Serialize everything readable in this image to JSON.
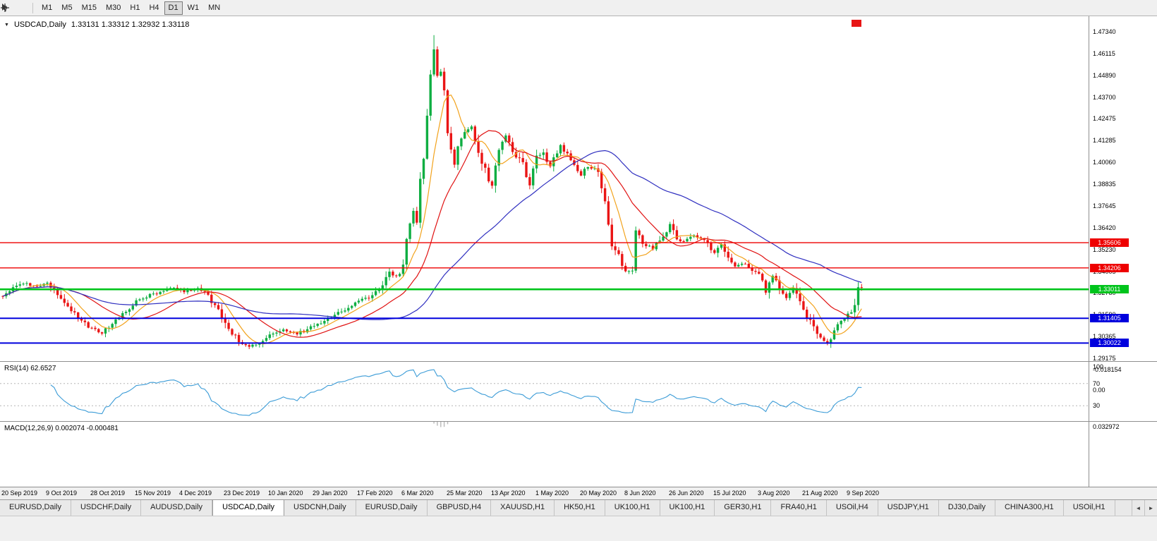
{
  "toolbar": {
    "icons": [
      "cursor-icon",
      "crosshair-icon"
    ],
    "timeframes": [
      "M1",
      "M5",
      "M15",
      "M30",
      "H1",
      "H4",
      "D1",
      "W1",
      "MN"
    ],
    "active_timeframe": "D1"
  },
  "chart": {
    "dropdown_icon": "▼",
    "symbol": "USDCAD,Daily",
    "ohlc_text": "1.33131 1.33312 1.32932 1.33118",
    "open": "1.33131",
    "high": "1.33312",
    "low": "1.32932",
    "close": "1.33118",
    "price_axis": {
      "labels": [
        "1.47340",
        "1.46115",
        "1.44890",
        "1.43700",
        "1.42475",
        "1.41285",
        "1.40060",
        "1.38835",
        "1.37645",
        "1.36420",
        "1.35230",
        "1.34005",
        "1.32780",
        "1.31590",
        "1.30365",
        "1.29175"
      ],
      "first_value": 1.4734,
      "last_value": 1.29175
    },
    "shift_marker_color": "#e81515"
  },
  "chart_data": {
    "type": "candlestick",
    "symbol": "USDCAD",
    "timeframe": "Daily",
    "ylim": [
      1.29175,
      1.4734
    ],
    "x_axis_dates": [
      "20 Sep 2019",
      "9 Oct 2019",
      "28 Oct 2019",
      "15 Nov 2019",
      "4 Dec 2019",
      "23 Dec 2019",
      "10 Jan 2020",
      "29 Jan 2020",
      "17 Feb 2020",
      "6 Mar 2020",
      "25 Mar 2020",
      "13 Apr 2020",
      "1 May 2020",
      "20 May 2020",
      "8 Jun 2020",
      "26 Jun 2020",
      "15 Jul 2020",
      "3 Aug 2020",
      "21 Aug 2020",
      "9 Sep 2020"
    ],
    "candles_per_date_label": 13,
    "candle_count": 252,
    "close_anchors": [
      [
        0,
        1.327
      ],
      [
        3,
        1.3305
      ],
      [
        6,
        1.3335
      ],
      [
        9,
        1.332
      ],
      [
        13,
        1.333
      ],
      [
        16,
        1.327
      ],
      [
        19,
        1.32
      ],
      [
        22,
        1.315
      ],
      [
        26,
        1.308
      ],
      [
        29,
        1.306
      ],
      [
        32,
        1.312
      ],
      [
        36,
        1.318
      ],
      [
        39,
        1.324
      ],
      [
        43,
        1.327
      ],
      [
        47,
        1.329
      ],
      [
        50,
        1.331
      ],
      [
        53,
        1.328
      ],
      [
        55,
        1.33
      ],
      [
        57,
        1.3315
      ],
      [
        60,
        1.327
      ],
      [
        63,
        1.318
      ],
      [
        66,
        1.308
      ],
      [
        69,
        1.301
      ],
      [
        72,
        1.2985
      ],
      [
        75,
        1.2992
      ],
      [
        78,
        1.3045
      ],
      [
        82,
        1.3075
      ],
      [
        86,
        1.3052
      ],
      [
        90,
        1.309
      ],
      [
        95,
        1.3135
      ],
      [
        100,
        1.319
      ],
      [
        104,
        1.3235
      ],
      [
        108,
        1.326
      ],
      [
        111,
        1.332
      ],
      [
        113,
        1.339
      ],
      [
        115,
        1.337
      ],
      [
        117,
        1.342
      ],
      [
        118,
        1.356
      ],
      [
        119,
        1.368
      ],
      [
        120,
        1.374
      ],
      [
        121,
        1.366
      ],
      [
        122,
        1.392
      ],
      [
        123,
        1.404
      ],
      [
        124,
        1.426
      ],
      [
        125,
        1.449
      ],
      [
        126,
        1.464
      ],
      [
        127,
        1.449
      ],
      [
        128,
        1.45
      ],
      [
        129,
        1.443
      ],
      [
        130,
        1.419
      ],
      [
        131,
        1.406
      ],
      [
        132,
        1.399
      ],
      [
        133,
        1.408
      ],
      [
        135,
        1.419
      ],
      [
        137,
        1.42
      ],
      [
        139,
        1.406
      ],
      [
        141,
        1.396
      ],
      [
        143,
        1.388
      ],
      [
        145,
        1.409
      ],
      [
        147,
        1.416
      ],
      [
        149,
        1.408
      ],
      [
        152,
        1.399
      ],
      [
        154,
        1.389
      ],
      [
        156,
        1.406
      ],
      [
        158,
        1.405
      ],
      [
        160,
        1.398
      ],
      [
        163,
        1.41
      ],
      [
        166,
        1.403
      ],
      [
        169,
        1.393
      ],
      [
        171,
        1.399
      ],
      [
        174,
        1.396
      ],
      [
        176,
        1.381
      ],
      [
        178,
        1.355
      ],
      [
        180,
        1.348
      ],
      [
        182,
        1.34
      ],
      [
        184,
        1.342
      ],
      [
        185,
        1.362
      ],
      [
        187,
        1.356
      ],
      [
        190,
        1.353
      ],
      [
        192,
        1.358
      ],
      [
        195,
        1.366
      ],
      [
        197,
        1.358
      ],
      [
        199,
        1.357
      ],
      [
        202,
        1.36
      ],
      [
        205,
        1.358
      ],
      [
        208,
        1.351
      ],
      [
        210,
        1.356
      ],
      [
        212,
        1.348
      ],
      [
        214,
        1.342
      ],
      [
        217,
        1.345
      ],
      [
        219,
        1.34
      ],
      [
        221,
        1.3385
      ],
      [
        223,
        1.328
      ],
      [
        225,
        1.337
      ],
      [
        227,
        1.331
      ],
      [
        229,
        1.3255
      ],
      [
        231,
        1.33
      ],
      [
        234,
        1.3175
      ],
      [
        236,
        1.313
      ],
      [
        238,
        1.306
      ],
      [
        240,
        1.302
      ],
      [
        241,
        1.3
      ],
      [
        243,
        1.307
      ],
      [
        245,
        1.313
      ],
      [
        247,
        1.3165
      ],
      [
        249,
        1.32
      ],
      [
        250,
        1.33131
      ],
      [
        251,
        1.33118
      ]
    ],
    "last_candle": {
      "open": 1.33131,
      "high": 1.33312,
      "low": 1.32932,
      "close": 1.33118
    },
    "peak_high": 1.4715,
    "moving_averages": [
      {
        "period": 8,
        "color": "#f2a21b"
      },
      {
        "period": 21,
        "color": "#e01212"
      },
      {
        "period": 55,
        "color": "#3030c0"
      }
    ],
    "levels": [
      {
        "value": 1.35606,
        "label": "1.35606",
        "color": "#ee0000",
        "thickness": 1.4
      },
      {
        "value": 1.34206,
        "label": "1.34206",
        "color": "#ee0000",
        "thickness": 1.4
      },
      {
        "value": 1.33011,
        "label": "1.33011",
        "color": "#00c41c",
        "thickness": 2.6
      },
      {
        "value": 1.31405,
        "label": "1.31405",
        "color": "#0000dd",
        "thickness": 2.0
      },
      {
        "value": 1.30022,
        "label": "1.30022",
        "color": "#0000dd",
        "thickness": 2.0
      }
    ],
    "up_color": "#0fae42",
    "down_color": "#ea1515"
  },
  "rsi": {
    "label": "RSI(14) 62.6527",
    "period": 14,
    "value": "62.6527",
    "axis_labels": [
      "100",
      "70",
      "30"
    ],
    "guide_levels": [
      70,
      30
    ],
    "line_color": "#3c9cd7"
  },
  "macd": {
    "label": "MACD(12,26,9) 0.002074 -0.000481",
    "fast": 12,
    "slow": 26,
    "signal_period": 9,
    "values": "0.002074 -0.000481",
    "axis_labels": [
      "0.032972",
      "0.00",
      "-0.018154"
    ],
    "axis_max": 0.032972,
    "axis_min": -0.018154,
    "histogram_color": "#bcbcbc",
    "signal_color": "#e01212"
  },
  "tabs": {
    "items": [
      "EURUSD,Daily",
      "USDCHF,Daily",
      "AUDUSD,Daily",
      "USDCAD,Daily",
      "USDCNH,Daily",
      "EURUSD,Daily",
      "GBPUSD,H4",
      "XAUUSD,H1",
      "HK50,H1",
      "UK100,H1",
      "UK100,H1",
      "GER30,H1",
      "FRA40,H1",
      "USOil,H4",
      "USDJPY,H1",
      "DJ30,Daily",
      "CHINA300,H1",
      "USOil,H1"
    ],
    "active_index": 3,
    "scroll_left_icon": "◄",
    "scroll_right_icon": "►"
  }
}
